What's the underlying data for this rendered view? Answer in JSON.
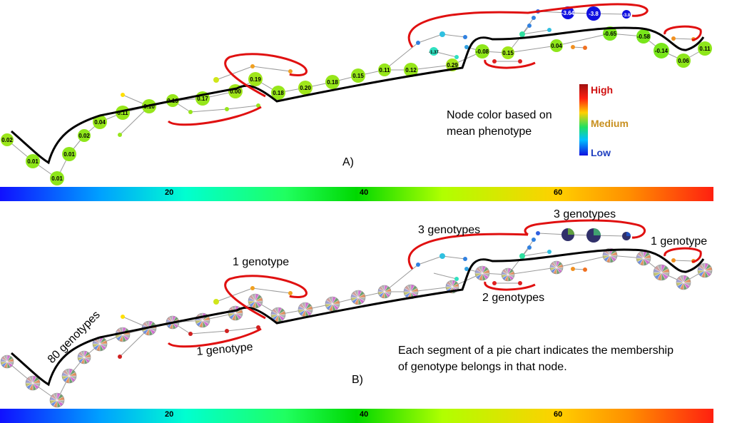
{
  "panel_a": {
    "panel_label": "A)",
    "legend_caption_lines": [
      "Node color based on",
      "mean phenotype"
    ],
    "legend_labels": {
      "high": "High",
      "medium": "Medium",
      "low": "Low"
    },
    "colors": {
      "high": "#d01010",
      "medium": "#c89020",
      "low": "#2040c0",
      "path": "#000000",
      "loop": "#e01010"
    },
    "node_labels": [
      "0.02",
      "0.01",
      "0.01",
      "0.01",
      "0.02",
      "0.04",
      "0.11",
      "0.10",
      "0.13",
      "0.17",
      "0.00",
      "0.19",
      "0.18",
      "0.20",
      "0.18",
      "0.15",
      "0.11",
      "0.12",
      "0.29",
      "-0.08",
      "0.15",
      "0.04",
      "-0.65",
      "-0.58",
      "-0.14",
      "0.06",
      "0.11",
      "-3.64",
      "-3.8",
      "-3.8",
      "-1.37"
    ]
  },
  "panel_b": {
    "panel_label": "B)",
    "annotations": {
      "g80": "80 genotypes",
      "g1_top": "1 genotype",
      "g1_bottom": "1 genotype",
      "g3_left": "3 genotypes",
      "g3_right": "3 genotypes",
      "g1_right": "1 genotype",
      "g2": "2 genotypes"
    },
    "caption_lines": [
      "Each segment of a pie chart indicates the membership",
      "of genotype belongs in that node."
    ]
  },
  "color_bar": {
    "tick_labels": [
      "20",
      "40",
      "60"
    ]
  }
}
